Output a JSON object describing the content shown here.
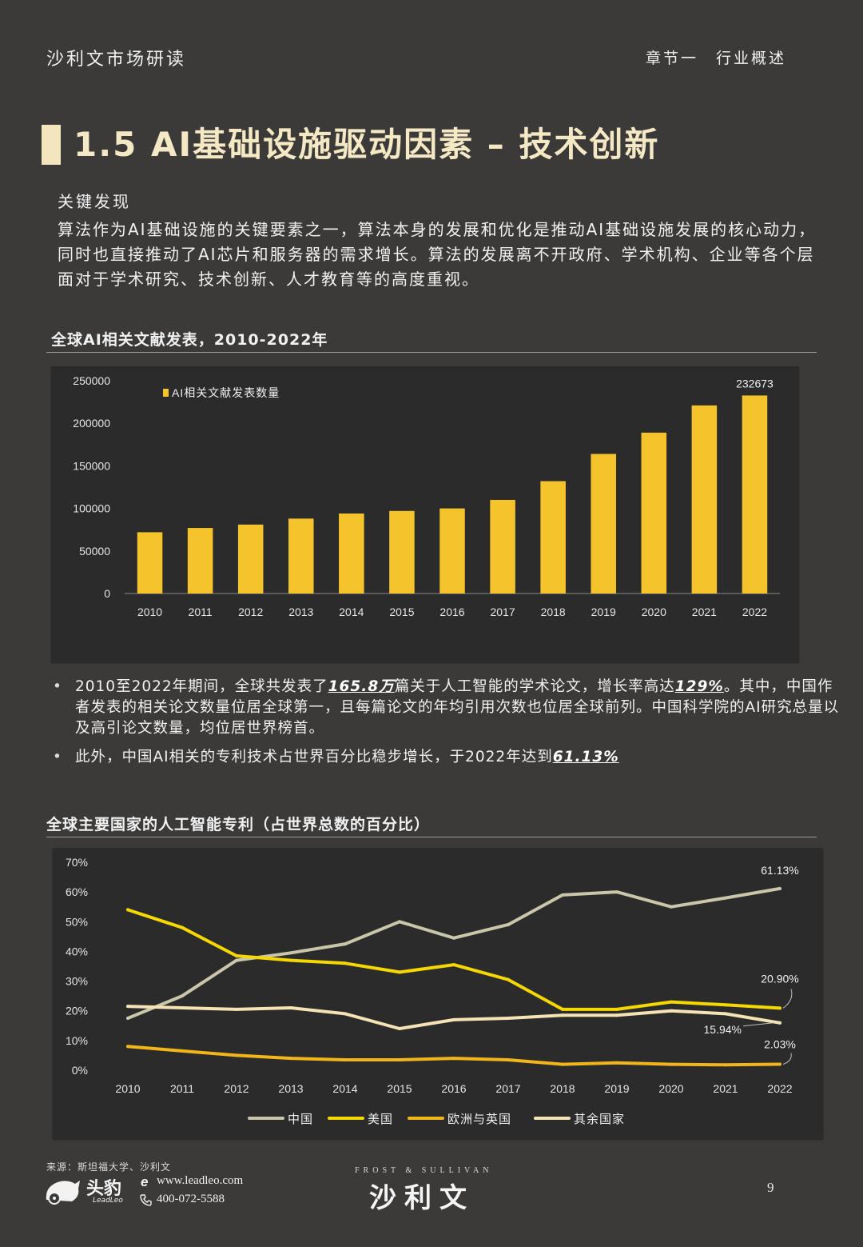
{
  "header": {
    "left": "沙利文市场研读",
    "right": "章节一　行业概述"
  },
  "title": "1.5 AI基础设施驱动因素 – 技术创新",
  "key_findings": {
    "label": "关键发现",
    "text": "算法作为AI基础设施的关键要素之一，算法本身的发展和优化是推动AI基础设施发展的核心动力，同时也直接推动了AI芯片和服务器的需求增长。算法的发展离不开政府、学术机构、企业等各个层面对于学术研究、技术创新、人才教育等的高度重视。"
  },
  "bar_section_title": "全球AI相关文献发表，2010-2022年",
  "line_section_title": "全球主要国家的人工智能专利（占世界总数的百分比）",
  "bullets": {
    "b1_part1": "2010至2022年期间，全球共发表了",
    "b1_hl1": "165.8万",
    "b1_part2": "篇关于人工智能的学术论文，增长率高达",
    "b1_hl2": "129%",
    "b1_part3": "。其中，中国作者发表的相关论文数量位居全球第一，且每篇论文的年均引用次数也位居全球前列。中国科学院的AI研究总量以及高引论文数量，均位居世界榜首。",
    "b2_part1": "此外，中国AI相关的专利技术占世界百分比稳步增长，于2022年达到",
    "b2_hl1": "61.13%"
  },
  "footer": {
    "source": "来源：斯坦福大学、沙利文",
    "logo_cn": "头豹",
    "logo_en": "LeadLeo",
    "website": "www.leadleo.com",
    "phone": "400-072-5588",
    "fs_small": "FROST & SULLIVAN",
    "fs_big": "沙利文",
    "page": "9"
  },
  "colors": {
    "bar": "#f5c32c",
    "china": "#c9c6aa",
    "us": "#f5d800",
    "eu": "#f2b51a",
    "others": "#f5e3b5"
  },
  "chart_data": [
    {
      "type": "bar",
      "title": "全球AI相关文献发表，2010-2022年",
      "categories": [
        "2010",
        "2011",
        "2012",
        "2013",
        "2014",
        "2015",
        "2016",
        "2017",
        "2018",
        "2019",
        "2020",
        "2021",
        "2022"
      ],
      "series": [
        {
          "name": "AI相关文献发表数量",
          "values": [
            72000,
            77000,
            81000,
            88000,
            94000,
            97000,
            100000,
            110000,
            132000,
            164000,
            189000,
            221000,
            232673
          ]
        }
      ],
      "data_labels": {
        "2022": "232673"
      },
      "ylim": [
        0,
        250000
      ],
      "yticks": [
        "0",
        "50000",
        "100000",
        "150000",
        "200000",
        "250000"
      ],
      "legend": "top-left"
    },
    {
      "type": "line",
      "title": "全球主要国家的人工智能专利（占世界总数的百分比）",
      "x": [
        "2010",
        "2011",
        "2012",
        "2013",
        "2014",
        "2015",
        "2016",
        "2017",
        "2018",
        "2019",
        "2020",
        "2021",
        "2022"
      ],
      "series": [
        {
          "name": "中国",
          "values": [
            17.5,
            25,
            37,
            39.5,
            42.5,
            50,
            44.5,
            49,
            59,
            60,
            55,
            58,
            61.13
          ],
          "end_label": "61.13%"
        },
        {
          "name": "美国",
          "values": [
            54,
            48,
            38.5,
            37,
            36,
            33,
            35.5,
            30.5,
            20.5,
            20.5,
            23,
            22,
            20.9
          ],
          "end_label": "20.90%"
        },
        {
          "name": "欧洲与英国",
          "values": [
            8,
            6.5,
            5,
            4,
            3.5,
            3.5,
            4,
            3.5,
            2,
            2.5,
            2,
            1.8,
            2.03
          ],
          "end_label": "2.03%"
        },
        {
          "name": "其余国家",
          "values": [
            21.5,
            21,
            20.5,
            21,
            19,
            14,
            17,
            17.5,
            18.5,
            18.5,
            20,
            19,
            15.94
          ],
          "end_label": "15.94%"
        }
      ],
      "ylim": [
        0,
        70
      ],
      "yticks": [
        "0%",
        "10%",
        "20%",
        "30%",
        "40%",
        "50%",
        "60%",
        "70%"
      ],
      "legend": "bottom"
    }
  ]
}
